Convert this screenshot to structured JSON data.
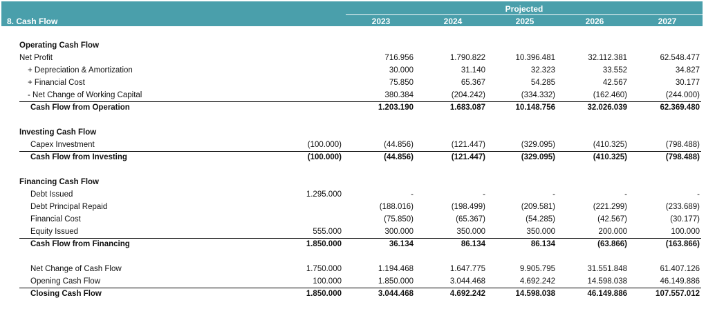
{
  "header": {
    "title": "8.  Cash Flow",
    "projected_label": "Projected",
    "years": [
      "2023",
      "2024",
      "2025",
      "2026",
      "2027"
    ]
  },
  "sections": {
    "operating": {
      "title": "Operating Cash Flow",
      "rows": [
        {
          "label": "Net Profit",
          "indent": 0,
          "hist": "",
          "values": [
            "716.956",
            "1.790.822",
            "10.396.481",
            "32.112.381",
            "62.548.477"
          ]
        },
        {
          "label": "+ Depreciation & Amortization",
          "indent": 2,
          "hist": "",
          "values": [
            "30.000",
            "31.140",
            "32.323",
            "33.552",
            "34.827"
          ]
        },
        {
          "label": "+ Financial Cost",
          "indent": 2,
          "hist": "",
          "values": [
            "75.850",
            "65.367",
            "54.285",
            "42.567",
            "30.177"
          ]
        },
        {
          "label": "- Net Change of Working Capital",
          "indent": 2,
          "hist": "",
          "values": [
            "380.384",
            "(204.242)",
            "(334.332)",
            "(162.460)",
            "(244.000)"
          ]
        }
      ],
      "total": {
        "label": "Cash Flow from Operation",
        "hist": "",
        "values": [
          "1.203.190",
          "1.683.087",
          "10.148.756",
          "32.026.039",
          "62.369.480"
        ]
      }
    },
    "investing": {
      "title": "Investing Cash Flow",
      "rows": [
        {
          "label": "Capex Investment",
          "indent": 1,
          "hist": "(100.000)",
          "values": [
            "(44.856)",
            "(121.447)",
            "(329.095)",
            "(410.325)",
            "(798.488)"
          ]
        }
      ],
      "total": {
        "label": "Cash Flow from Investing",
        "hist": "(100.000)",
        "values": [
          "(44.856)",
          "(121.447)",
          "(329.095)",
          "(410.325)",
          "(798.488)"
        ]
      }
    },
    "financing": {
      "title": "Financing Cash Flow",
      "rows": [
        {
          "label": "Debt Issued",
          "indent": 1,
          "hist": "1.295.000",
          "values": [
            "-",
            "-",
            "-",
            "-",
            "-"
          ]
        },
        {
          "label": "Debt Principal Repaid",
          "indent": 1,
          "hist": "",
          "values": [
            "(188.016)",
            "(198.499)",
            "(209.581)",
            "(221.299)",
            "(233.689)"
          ]
        },
        {
          "label": "Financial Cost",
          "indent": 1,
          "hist": "",
          "values": [
            "(75.850)",
            "(65.367)",
            "(54.285)",
            "(42.567)",
            "(30.177)"
          ]
        },
        {
          "label": "Equity Issued",
          "indent": 1,
          "hist": "555.000",
          "values": [
            "300.000",
            "350.000",
            "350.000",
            "200.000",
            "100.000"
          ]
        }
      ],
      "total": {
        "label": "Cash Flow from Financing",
        "hist": "1.850.000",
        "values": [
          "36.134",
          "86.134",
          "86.134",
          "(63.866)",
          "(163.866)"
        ]
      }
    },
    "summary": {
      "rows": [
        {
          "label": "Net Change of Cash Flow",
          "indent": 1,
          "hist": "1.750.000",
          "values": [
            "1.194.468",
            "1.647.775",
            "9.905.795",
            "31.551.848",
            "61.407.126"
          ]
        },
        {
          "label": "Opening Cash Flow",
          "indent": 1,
          "hist": "100.000",
          "values": [
            "1.850.000",
            "3.044.468",
            "4.692.242",
            "14.598.038",
            "46.149.886"
          ]
        }
      ],
      "total": {
        "label": "Closing Cash Flow",
        "hist": "1.850.000",
        "values": [
          "3.044.468",
          "4.692.242",
          "14.598.038",
          "46.149.886",
          "107.557.012"
        ]
      }
    }
  }
}
